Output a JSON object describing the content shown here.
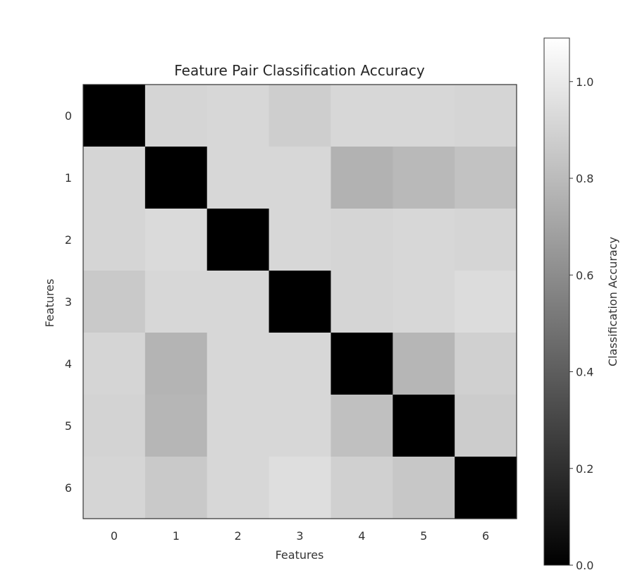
{
  "chart_data": {
    "type": "heatmap",
    "title": "Feature Pair Classification Accuracy",
    "xlabel": "Features",
    "ylabel": "Features",
    "x_categories": [
      "0",
      "1",
      "2",
      "3",
      "4",
      "5",
      "6"
    ],
    "y_categories": [
      "0",
      "1",
      "2",
      "3",
      "4",
      "5",
      "6"
    ],
    "values": [
      [
        0.0,
        0.91,
        0.92,
        0.88,
        0.92,
        0.92,
        0.91
      ],
      [
        0.91,
        0.0,
        0.92,
        0.92,
        0.76,
        0.79,
        0.83
      ],
      [
        0.91,
        0.93,
        0.0,
        0.92,
        0.91,
        0.92,
        0.91
      ],
      [
        0.86,
        0.92,
        0.92,
        0.0,
        0.91,
        0.92,
        0.94
      ],
      [
        0.91,
        0.77,
        0.92,
        0.92,
        0.0,
        0.78,
        0.89
      ],
      [
        0.9,
        0.78,
        0.92,
        0.92,
        0.82,
        0.0,
        0.87
      ],
      [
        0.91,
        0.86,
        0.92,
        0.95,
        0.89,
        0.85,
        0.0
      ]
    ],
    "colormap": "gray",
    "vmin": 0.0,
    "vmax": 1.09,
    "colorbar": {
      "label": "Classification Accuracy",
      "ticks": [
        0.0,
        0.2,
        0.4,
        0.6,
        0.8,
        1.0
      ],
      "tick_labels": [
        "0.0",
        "0.2",
        "0.4",
        "0.6",
        "0.8",
        "1.0"
      ]
    },
    "grid": false
  }
}
